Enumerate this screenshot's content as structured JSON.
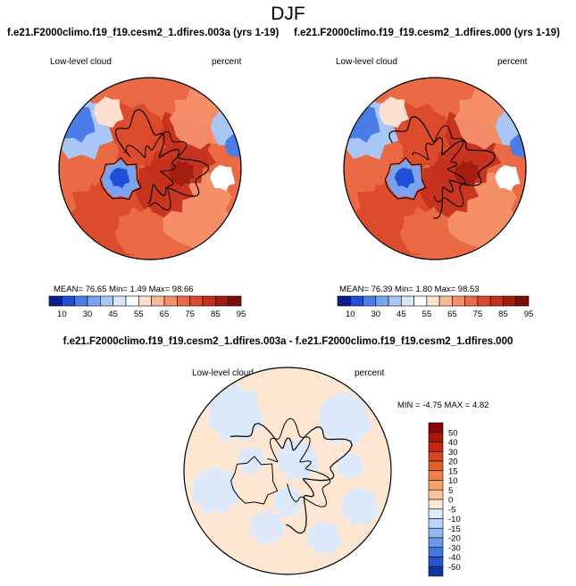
{
  "main_title": "DJF",
  "panels": [
    {
      "title": "f.e21.F2000climo.f19_f19.cesm2_1.dfires.003a (yrs 1-19)",
      "variable": "Low-level cloud",
      "units": "percent",
      "stats": "MEAN= 76.65  Min=  1.49  Max= 98.66"
    },
    {
      "title": "f.e21.F2000climo.f19_f19.cesm2_1.dfires.000 (yrs 1-19)",
      "variable": "Low-level cloud",
      "units": "percent",
      "stats": "MEAN= 76.39  Min=  1.80  Max= 98.53"
    },
    {
      "title": "f.e21.F2000climo.f19_f19.cesm2_1.dfires.003a - f.e21.F2000climo.f19_f19.cesm2_1.dfires.000",
      "variable": "Low-level cloud",
      "units": "percent",
      "stats": "MIN = -4.75 MAX =  4.82"
    }
  ],
  "chart_data": [
    {
      "type": "heatmap",
      "projection": "north-polar-stereographic",
      "title": "f.e21.F2000climo.f19_f19.cesm2_1.dfires.003a (yrs 1-19)",
      "variable": "Low-level cloud",
      "units": "percent",
      "mean": 76.65,
      "min": 1.49,
      "max": 98.66,
      "colorbar_labels": [
        "10",
        "30",
        "45",
        "55",
        "65",
        "75",
        "85",
        "95"
      ],
      "colorbar_colors": [
        "#0a1f8c",
        "#1f4fd6",
        "#4a7ee6",
        "#79a3f0",
        "#a8c6f6",
        "#d9e6fb",
        "#ffffff",
        "#fde0cf",
        "#f9b99a",
        "#f4916a",
        "#ea6a45",
        "#dc4a2c",
        "#c5301c",
        "#a11c10",
        "#7a0f08"
      ]
    },
    {
      "type": "heatmap",
      "projection": "north-polar-stereographic",
      "title": "f.e21.F2000climo.f19_f19.cesm2_1.dfires.000 (yrs 1-19)",
      "variable": "Low-level cloud",
      "units": "percent",
      "mean": 76.39,
      "min": 1.8,
      "max": 98.53,
      "colorbar_labels": [
        "10",
        "30",
        "45",
        "55",
        "65",
        "75",
        "85",
        "95"
      ],
      "colorbar_colors": [
        "#0a1f8c",
        "#1f4fd6",
        "#4a7ee6",
        "#79a3f0",
        "#a8c6f6",
        "#d9e6fb",
        "#ffffff",
        "#fde0cf",
        "#f9b99a",
        "#f4916a",
        "#ea6a45",
        "#dc4a2c",
        "#c5301c",
        "#a11c10",
        "#7a0f08"
      ]
    },
    {
      "type": "heatmap",
      "projection": "north-polar-stereographic",
      "title": "f.e21.F2000climo.f19_f19.cesm2_1.dfires.003a - f.e21.F2000climo.f19_f19.cesm2_1.dfires.000",
      "variable": "Low-level cloud",
      "units": "percent",
      "min": -4.75,
      "max": 4.82,
      "colorbar_labels": [
        "50",
        "40",
        "30",
        "20",
        "15",
        "10",
        "5",
        "0",
        "-5",
        "-10",
        "-15",
        "-20",
        "-30",
        "-40",
        "-50"
      ],
      "colorbar_colors": [
        "#8b0000",
        "#a8160a",
        "#c22a14",
        "#d6451f",
        "#e4622e",
        "#ee8148",
        "#f5a26d",
        "#fbc49a",
        "#fde6d2",
        "#dce9fb",
        "#bcd4f7",
        "#95b8f1",
        "#6c98e9",
        "#4677df",
        "#2555c9",
        "#10369f"
      ]
    }
  ]
}
